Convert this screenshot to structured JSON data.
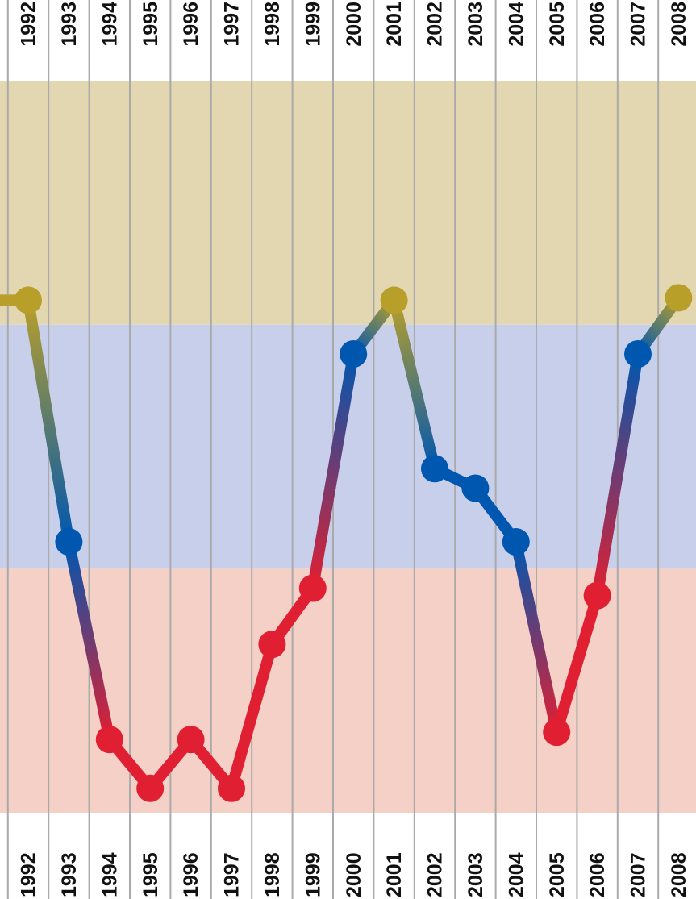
{
  "chart_data": {
    "type": "line",
    "categories": [
      "1992",
      "1993",
      "1994",
      "1995",
      "1996",
      "1997",
      "1998",
      "1999",
      "2000",
      "2001",
      "2002",
      "2003",
      "2004",
      "2005",
      "2006",
      "2007",
      "2008"
    ],
    "values": [
      2.1,
      1.11,
      0.3,
      0.1,
      0.3,
      0.1,
      0.69,
      0.92,
      1.88,
      2.1,
      1.41,
      1.33,
      1.11,
      0.33,
      0.89,
      1.88,
      2.11
    ],
    "ylim": [
      0,
      3
    ],
    "bands": [
      {
        "range": [
          0,
          1
        ],
        "fill": "#f5d0c6",
        "color": "#e01f32"
      },
      {
        "range": [
          1,
          2
        ],
        "fill": "#c8cfea",
        "color": "#0057b0"
      },
      {
        "range": [
          2,
          3
        ],
        "fill": "#e3d7b2",
        "color": "#b89f2a"
      }
    ],
    "grid": true
  }
}
